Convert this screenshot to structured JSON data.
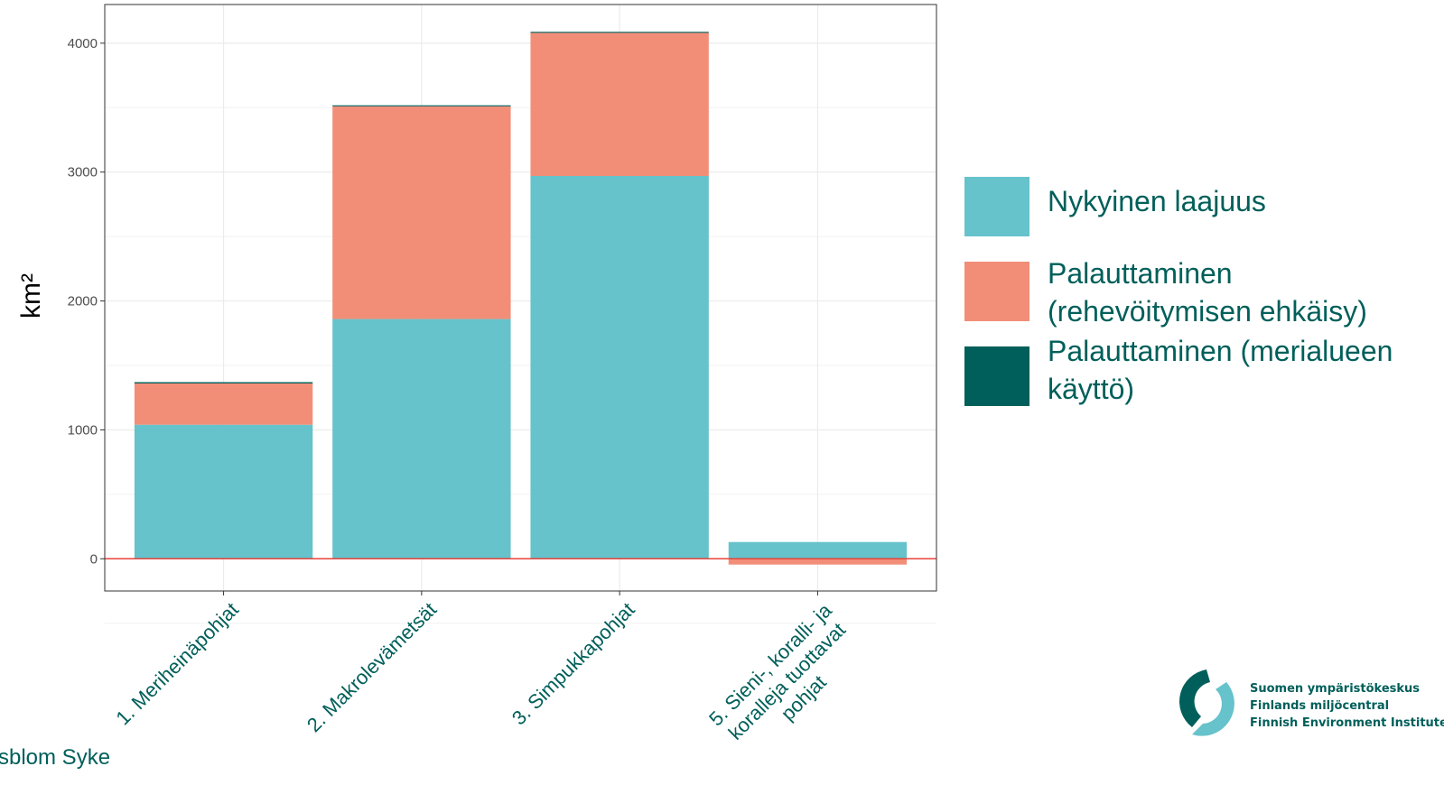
{
  "chart_data": {
    "type": "bar",
    "stacked": true,
    "categories": [
      "1. Meriheinäpohjat",
      "2. Makrolevämetsät",
      "3. Simpukkapohjat",
      "5. Sieni-, koralli- ja koralleja tuottavat pohjat"
    ],
    "category_lines": [
      [
        "1. Meriheinäpohjat"
      ],
      [
        "2. Makrolevämetsät"
      ],
      [
        "3. Simpukkapohjat"
      ],
      [
        "5. Sieni-, koralli- ja",
        "koralleja tuottavat",
        "pohjat"
      ]
    ],
    "series": [
      {
        "name": "Nykyinen laajuus",
        "color": "#66C2CB",
        "values": [
          1040,
          1860,
          2970,
          130
        ]
      },
      {
        "name": "Palauttaminen (rehevöitymisen ehkäisy)",
        "color": "#F28E78",
        "values": [
          320,
          1650,
          1110,
          -45
        ]
      },
      {
        "name": "Palauttaminen (merialueen käyttö)",
        "color": "#005F5A",
        "values": [
          10,
          8,
          8,
          0
        ]
      }
    ],
    "ylabel": "km²",
    "ylim": [
      -250,
      4300
    ],
    "yticks": [
      0,
      1000,
      2000,
      3000,
      4000
    ],
    "grid": true,
    "zero_line_color": "#E8443A",
    "legend_position": "right"
  },
  "legend": {
    "items": [
      {
        "label": "Nykyinen laajuus",
        "color": "#66C2CB"
      },
      {
        "label": "Palauttaminen (rehevöitymisen ehkäisy)",
        "color": "#F28E78"
      },
      {
        "label": "Palauttaminen (merialueen käyttö)",
        "color": "#005F5A"
      }
    ]
  },
  "credit": "rsblom Syke",
  "logo": {
    "lines": [
      "Suomen ympäristökeskus",
      "Finlands miljöcentral",
      "Finnish Environment Institute"
    ]
  }
}
